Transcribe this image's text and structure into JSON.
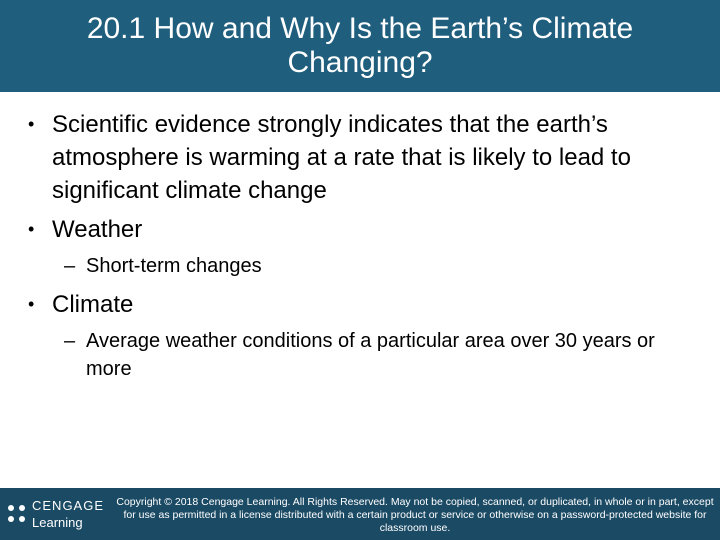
{
  "header": {
    "title": "20.1 How and Why Is the Earth’s Climate Changing?"
  },
  "bullets": [
    {
      "level": 1,
      "text": "Scientific evidence strongly indicates that the earth’s atmosphere is warming at a rate that is likely to lead to significant climate change"
    },
    {
      "level": 1,
      "text": "Weather"
    },
    {
      "level": 2,
      "text": "Short-term changes"
    },
    {
      "level": 1,
      "text": "Climate"
    },
    {
      "level": 2,
      "text": "Average weather conditions of a particular area over 30 years or more"
    }
  ],
  "footer": {
    "logo": {
      "brand": "CENGAGE",
      "sub": "Learning"
    },
    "copyright": "Copyright © 2018 Cengage Learning. All Rights Reserved. May not be copied, scanned, or duplicated, in whole or in part, except for use as permitted in a license distributed with a certain product or service or otherwise on a password-protected website for classroom use."
  }
}
